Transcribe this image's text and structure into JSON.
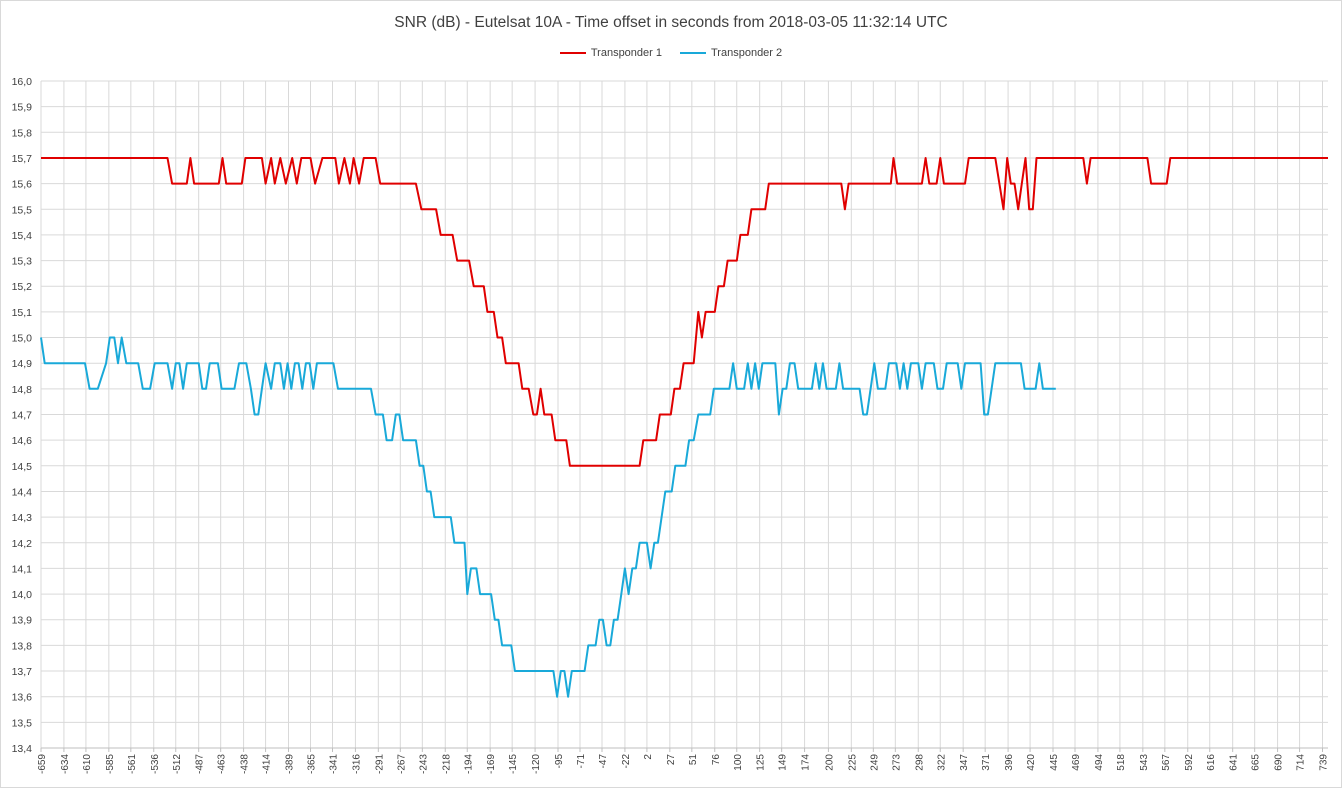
{
  "chart_data": {
    "type": "line",
    "title": "SNR (dB) - Eutelsat 10A - Time offset in seconds from 2018-03-05 11:32:14 UTC",
    "xlabel": "",
    "ylabel": "",
    "ylim": [
      13.4,
      16.0
    ],
    "y_ticks": [
      "16,0",
      "15,9",
      "15,8",
      "15,7",
      "15,6",
      "15,5",
      "15,4",
      "15,3",
      "15,2",
      "15,1",
      "15,0",
      "14,9",
      "14,8",
      "14,7",
      "14,6",
      "14,5",
      "14,4",
      "14,3",
      "14,2",
      "14,1",
      "14,0",
      "13,9",
      "13,8",
      "13,7",
      "13,6",
      "13,5",
      "13,4"
    ],
    "x_ticks": [
      "-659",
      "-634",
      "-610",
      "-585",
      "-561",
      "-536",
      "-512",
      "-487",
      "-463",
      "-438",
      "-414",
      "-389",
      "-365",
      "-341",
      "-316",
      "-291",
      "-267",
      "-243",
      "-218",
      "-194",
      "-169",
      "-145",
      "-120",
      "-95",
      "-71",
      "-47",
      "-22",
      "2",
      "27",
      "51",
      "76",
      "100",
      "125",
      "149",
      "174",
      "200",
      "225",
      "249",
      "273",
      "298",
      "322",
      "347",
      "371",
      "396",
      "420",
      "445",
      "469",
      "494",
      "518",
      "543",
      "567",
      "592",
      "616",
      "641",
      "665",
      "690",
      "714",
      "739"
    ],
    "xlim": [
      -659,
      745
    ],
    "grid": true,
    "legend_position": "top-center",
    "series": [
      {
        "name": "Transponder 1",
        "color": "#e00000",
        "points": [
          [
            -659,
            15.7
          ],
          [
            -521,
            15.7
          ],
          [
            -516,
            15.6
          ],
          [
            -500,
            15.6
          ],
          [
            -496,
            15.7
          ],
          [
            -492,
            15.6
          ],
          [
            -465,
            15.6
          ],
          [
            -461,
            15.7
          ],
          [
            -457,
            15.6
          ],
          [
            -440,
            15.6
          ],
          [
            -436,
            15.7
          ],
          [
            -418,
            15.7
          ],
          [
            -414,
            15.6
          ],
          [
            -408,
            15.7
          ],
          [
            -404,
            15.6
          ],
          [
            -398,
            15.7
          ],
          [
            -392,
            15.6
          ],
          [
            -385,
            15.7
          ],
          [
            -380,
            15.6
          ],
          [
            -375,
            15.7
          ],
          [
            -365,
            15.7
          ],
          [
            -360,
            15.6
          ],
          [
            -352,
            15.7
          ],
          [
            -338,
            15.7
          ],
          [
            -334,
            15.6
          ],
          [
            -328,
            15.7
          ],
          [
            -322,
            15.6
          ],
          [
            -318,
            15.7
          ],
          [
            -312,
            15.6
          ],
          [
            -307,
            15.7
          ],
          [
            -294,
            15.7
          ],
          [
            -289,
            15.6
          ],
          [
            -250,
            15.6
          ],
          [
            -244,
            15.5
          ],
          [
            -228,
            15.5
          ],
          [
            -223,
            15.4
          ],
          [
            -210,
            15.4
          ],
          [
            -205,
            15.3
          ],
          [
            -192,
            15.3
          ],
          [
            -187,
            15.2
          ],
          [
            -176,
            15.2
          ],
          [
            -172,
            15.1
          ],
          [
            -165,
            15.1
          ],
          [
            -161,
            15.0
          ],
          [
            -156,
            15.0
          ],
          [
            -152,
            14.9
          ],
          [
            -138,
            14.9
          ],
          [
            -134,
            14.8
          ],
          [
            -127,
            14.8
          ],
          [
            -122,
            14.7
          ],
          [
            -118,
            14.7
          ],
          [
            -114,
            14.8
          ],
          [
            -110,
            14.7
          ],
          [
            -102,
            14.7
          ],
          [
            -98,
            14.6
          ],
          [
            -86,
            14.6
          ],
          [
            -82,
            14.5
          ],
          [
            -6,
            14.5
          ],
          [
            -2,
            14.6
          ],
          [
            12,
            14.6
          ],
          [
            16,
            14.7
          ],
          [
            28,
            14.7
          ],
          [
            32,
            14.8
          ],
          [
            38,
            14.8
          ],
          [
            42,
            14.9
          ],
          [
            53,
            14.9
          ],
          [
            58,
            15.1
          ],
          [
            62,
            15.0
          ],
          [
            66,
            15.1
          ],
          [
            76,
            15.1
          ],
          [
            80,
            15.2
          ],
          [
            86,
            15.2
          ],
          [
            90,
            15.3
          ],
          [
            100,
            15.3
          ],
          [
            104,
            15.4
          ],
          [
            112,
            15.4
          ],
          [
            116,
            15.5
          ],
          [
            131,
            15.5
          ],
          [
            135,
            15.6
          ],
          [
            214,
            15.6
          ],
          [
            218,
            15.5
          ],
          [
            222,
            15.6
          ],
          [
            268,
            15.6
          ],
          [
            271,
            15.7
          ],
          [
            275,
            15.6
          ],
          [
            302,
            15.6
          ],
          [
            306,
            15.7
          ],
          [
            310,
            15.6
          ],
          [
            318,
            15.6
          ],
          [
            322,
            15.7
          ],
          [
            326,
            15.6
          ],
          [
            349,
            15.6
          ],
          [
            353,
            15.7
          ],
          [
            382,
            15.7
          ],
          [
            391,
            15.5
          ],
          [
            395,
            15.7
          ],
          [
            399,
            15.6
          ],
          [
            403,
            15.6
          ],
          [
            407,
            15.5
          ],
          [
            411,
            15.6
          ],
          [
            415,
            15.7
          ],
          [
            419,
            15.5
          ],
          [
            423,
            15.5
          ],
          [
            427,
            15.7
          ],
          [
            478,
            15.7
          ],
          [
            482,
            15.6
          ],
          [
            486,
            15.7
          ],
          [
            548,
            15.7
          ],
          [
            552,
            15.6
          ],
          [
            569,
            15.6
          ],
          [
            573,
            15.7
          ],
          [
            745,
            15.7
          ]
        ]
      },
      {
        "name": "Transponder 2",
        "color": "#19a9d9",
        "points": [
          [
            -659,
            15.0
          ],
          [
            -655,
            14.9
          ],
          [
            -611,
            14.9
          ],
          [
            -606,
            14.8
          ],
          [
            -597,
            14.8
          ],
          [
            -588,
            14.9
          ],
          [
            -584,
            15.0
          ],
          [
            -579,
            15.0
          ],
          [
            -575,
            14.9
          ],
          [
            -571,
            15.0
          ],
          [
            -566,
            14.9
          ],
          [
            -553,
            14.9
          ],
          [
            -548,
            14.8
          ],
          [
            -540,
            14.8
          ],
          [
            -535,
            14.9
          ],
          [
            -521,
            14.9
          ],
          [
            -516,
            14.8
          ],
          [
            -512,
            14.9
          ],
          [
            -508,
            14.9
          ],
          [
            -504,
            14.8
          ],
          [
            -500,
            14.9
          ],
          [
            -487,
            14.9
          ],
          [
            -483,
            14.8
          ],
          [
            -479,
            14.8
          ],
          [
            -475,
            14.9
          ],
          [
            -466,
            14.9
          ],
          [
            -462,
            14.8
          ],
          [
            -448,
            14.8
          ],
          [
            -443,
            14.9
          ],
          [
            -435,
            14.9
          ],
          [
            -430,
            14.8
          ],
          [
            -426,
            14.7
          ],
          [
            -422,
            14.7
          ],
          [
            -418,
            14.8
          ],
          [
            -414,
            14.9
          ],
          [
            -408,
            14.8
          ],
          [
            -404,
            14.9
          ],
          [
            -398,
            14.9
          ],
          [
            -394,
            14.8
          ],
          [
            -390,
            14.9
          ],
          [
            -386,
            14.8
          ],
          [
            -382,
            14.9
          ],
          [
            -378,
            14.9
          ],
          [
            -374,
            14.8
          ],
          [
            -370,
            14.9
          ],
          [
            -366,
            14.9
          ],
          [
            -362,
            14.8
          ],
          [
            -358,
            14.9
          ],
          [
            -340,
            14.9
          ],
          [
            -335,
            14.8
          ],
          [
            -316,
            14.8
          ],
          [
            -312,
            14.8
          ],
          [
            -299,
            14.8
          ],
          [
            -294,
            14.7
          ],
          [
            -286,
            14.7
          ],
          [
            -282,
            14.6
          ],
          [
            -276,
            14.6
          ],
          [
            -272,
            14.7
          ],
          [
            -268,
            14.7
          ],
          [
            -264,
            14.6
          ],
          [
            -250,
            14.6
          ],
          [
            -246,
            14.5
          ],
          [
            -242,
            14.5
          ],
          [
            -238,
            14.4
          ],
          [
            -234,
            14.4
          ],
          [
            -230,
            14.3
          ],
          [
            -212,
            14.3
          ],
          [
            -208,
            14.2
          ],
          [
            -197,
            14.2
          ],
          [
            -194,
            14.0
          ],
          [
            -190,
            14.1
          ],
          [
            -184,
            14.1
          ],
          [
            -180,
            14.0
          ],
          [
            -168,
            14.0
          ],
          [
            -164,
            13.9
          ],
          [
            -160,
            13.9
          ],
          [
            -156,
            13.8
          ],
          [
            -146,
            13.8
          ],
          [
            -142,
            13.7
          ],
          [
            -100,
            13.7
          ],
          [
            -96,
            13.6
          ],
          [
            -92,
            13.7
          ],
          [
            -88,
            13.7
          ],
          [
            -84,
            13.6
          ],
          [
            -80,
            13.7
          ],
          [
            -66,
            13.7
          ],
          [
            -62,
            13.8
          ],
          [
            -54,
            13.8
          ],
          [
            -50,
            13.9
          ],
          [
            -46,
            13.9
          ],
          [
            -42,
            13.8
          ],
          [
            -38,
            13.8
          ],
          [
            -34,
            13.9
          ],
          [
            -30,
            13.9
          ],
          [
            -26,
            14.0
          ],
          [
            -22,
            14.1
          ],
          [
            -18,
            14.0
          ],
          [
            -14,
            14.1
          ],
          [
            -10,
            14.1
          ],
          [
            -6,
            14.2
          ],
          [
            2,
            14.2
          ],
          [
            6,
            14.1
          ],
          [
            10,
            14.2
          ],
          [
            14,
            14.2
          ],
          [
            18,
            14.3
          ],
          [
            22,
            14.4
          ],
          [
            29,
            14.4
          ],
          [
            33,
            14.5
          ],
          [
            44,
            14.5
          ],
          [
            48,
            14.6
          ],
          [
            53,
            14.6
          ],
          [
            58,
            14.7
          ],
          [
            71,
            14.7
          ],
          [
            75,
            14.8
          ],
          [
            92,
            14.8
          ],
          [
            96,
            14.9
          ],
          [
            100,
            14.8
          ],
          [
            108,
            14.8
          ],
          [
            112,
            14.9
          ],
          [
            116,
            14.8
          ],
          [
            120,
            14.9
          ],
          [
            124,
            14.8
          ],
          [
            128,
            14.9
          ],
          [
            142,
            14.9
          ],
          [
            146,
            14.7
          ],
          [
            150,
            14.8
          ],
          [
            154,
            14.8
          ],
          [
            158,
            14.9
          ],
          [
            163,
            14.9
          ],
          [
            167,
            14.8
          ],
          [
            182,
            14.8
          ],
          [
            186,
            14.9
          ],
          [
            190,
            14.8
          ],
          [
            194,
            14.9
          ],
          [
            198,
            14.8
          ],
          [
            208,
            14.8
          ],
          [
            212,
            14.9
          ],
          [
            216,
            14.8
          ],
          [
            234,
            14.8
          ],
          [
            238,
            14.7
          ],
          [
            242,
            14.7
          ],
          [
            246,
            14.8
          ],
          [
            250,
            14.9
          ],
          [
            254,
            14.8
          ],
          [
            262,
            14.8
          ],
          [
            266,
            14.9
          ],
          [
            274,
            14.9
          ],
          [
            278,
            14.8
          ],
          [
            282,
            14.9
          ],
          [
            286,
            14.8
          ],
          [
            290,
            14.9
          ],
          [
            298,
            14.9
          ],
          [
            302,
            14.8
          ],
          [
            306,
            14.9
          ],
          [
            315,
            14.9
          ],
          [
            319,
            14.8
          ],
          [
            325,
            14.8
          ],
          [
            329,
            14.9
          ],
          [
            341,
            14.9
          ],
          [
            345,
            14.8
          ],
          [
            349,
            14.9
          ],
          [
            366,
            14.9
          ],
          [
            370,
            14.7
          ],
          [
            374,
            14.7
          ],
          [
            378,
            14.8
          ],
          [
            382,
            14.9
          ],
          [
            410,
            14.9
          ],
          [
            414,
            14.8
          ],
          [
            426,
            14.8
          ],
          [
            430,
            14.9
          ],
          [
            434,
            14.8
          ],
          [
            448,
            14.8
          ]
        ]
      }
    ]
  }
}
